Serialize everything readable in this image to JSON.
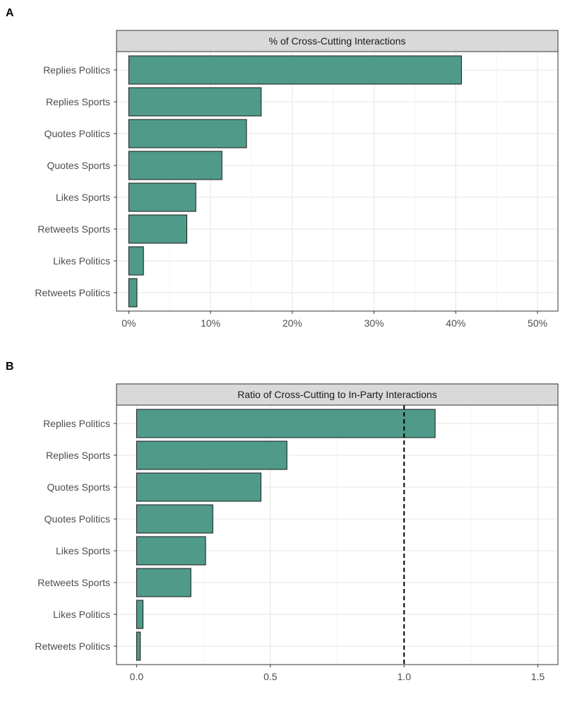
{
  "panel_letters": [
    "A",
    "B"
  ],
  "chart_data": [
    {
      "type": "bar",
      "orientation": "horizontal",
      "panel": "A",
      "title": "% of Cross-Cutting Interactions",
      "xlabel": "",
      "ylabel": "",
      "categories": [
        "Replies Politics",
        "Replies Sports",
        "Quotes Politics",
        "Quotes Sports",
        "Likes Sports",
        "Retweets Sports",
        "Likes Politics",
        "Retweets Politics"
      ],
      "values": [
        40.7,
        16.2,
        14.4,
        11.4,
        8.2,
        7.1,
        1.8,
        1.0
      ],
      "value_unit": "%",
      "xlim": [
        -1.5,
        52.5
      ],
      "xticks": [
        0,
        10,
        20,
        30,
        40,
        50
      ],
      "xtick_labels": [
        "0%",
        "10%",
        "20%",
        "30%",
        "40%",
        "50%"
      ],
      "grid": true,
      "bar_color": "#3d8f7d",
      "bar_edge_color": "#1a1a1a",
      "reference_line": null
    },
    {
      "type": "bar",
      "orientation": "horizontal",
      "panel": "B",
      "title": "Ratio of Cross-Cutting to In-Party Interactions",
      "xlabel": "",
      "ylabel": "",
      "categories": [
        "Replies Politics",
        "Replies Sports",
        "Quotes Sports",
        "Quotes Politics",
        "Likes Sports",
        "Retweets Sports",
        "Likes Politics",
        "Retweets Politics"
      ],
      "values": [
        1.116,
        0.562,
        0.465,
        0.285,
        0.258,
        0.203,
        0.024,
        0.014
      ],
      "xlim": [
        -0.075,
        1.575
      ],
      "xticks": [
        0,
        0.5,
        1.0,
        1.5
      ],
      "xtick_labels": [
        "0.0",
        "0.5",
        "1.0",
        "1.5"
      ],
      "grid": true,
      "bar_color": "#3d8f7d",
      "bar_edge_color": "#1a1a1a",
      "reference_line": {
        "x": 1.0,
        "style": "dashed",
        "color": "#000000"
      }
    }
  ]
}
